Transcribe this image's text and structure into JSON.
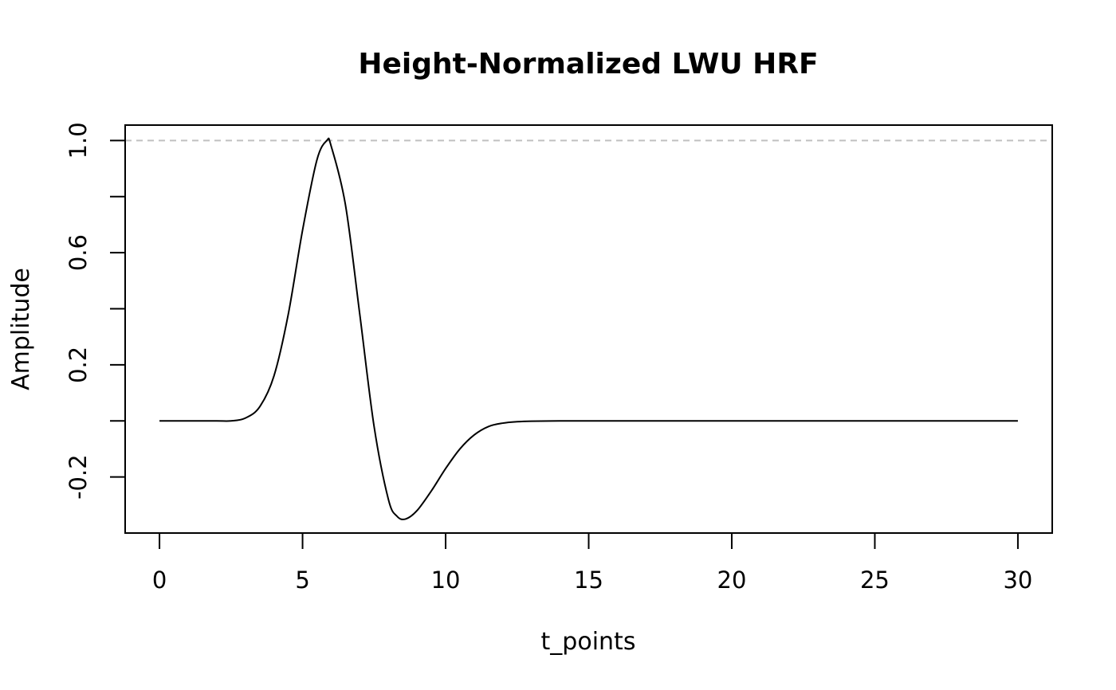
{
  "chart_data": {
    "type": "line",
    "title": "Height-Normalized LWU HRF",
    "xlabel": "t_points",
    "ylabel": "Amplitude",
    "xlim": [
      -1.2,
      31.2
    ],
    "ylim": [
      -0.4,
      1.055
    ],
    "x_ticks": [
      0,
      5,
      10,
      15,
      20,
      25,
      30
    ],
    "x_tick_labels": [
      "0",
      "5",
      "10",
      "15",
      "20",
      "25",
      "30"
    ],
    "y_ticks": [
      -0.2,
      0.0,
      0.2,
      0.4,
      0.6,
      0.8,
      1.0
    ],
    "y_tick_labels": [
      "-0.2",
      "",
      "0.2",
      "",
      "0.6",
      "",
      "1.0"
    ],
    "reference_line": {
      "y": 1.0,
      "style": "dashed",
      "color": "#c0c0c0"
    },
    "grid": false,
    "legend": "none",
    "series": [
      {
        "color": "#000000",
        "x": [
          0,
          1,
          2,
          2.5,
          3,
          3.5,
          4,
          4.5,
          5,
          5.5,
          5.85,
          6,
          6.5,
          7,
          7.5,
          8,
          8.3,
          8.6,
          9,
          9.5,
          10,
          10.5,
          11,
          11.5,
          12,
          12.5,
          13,
          14,
          15,
          20,
          25,
          30
        ],
        "y": [
          0,
          0,
          0,
          0.0,
          0.01,
          0.05,
          0.16,
          0.38,
          0.68,
          0.93,
          1.0,
          0.98,
          0.77,
          0.38,
          -0.02,
          -0.28,
          -0.34,
          -0.35,
          -0.32,
          -0.25,
          -0.17,
          -0.1,
          -0.05,
          -0.02,
          -0.008,
          -0.003,
          -0.001,
          0,
          0,
          0,
          0,
          0
        ]
      }
    ]
  }
}
